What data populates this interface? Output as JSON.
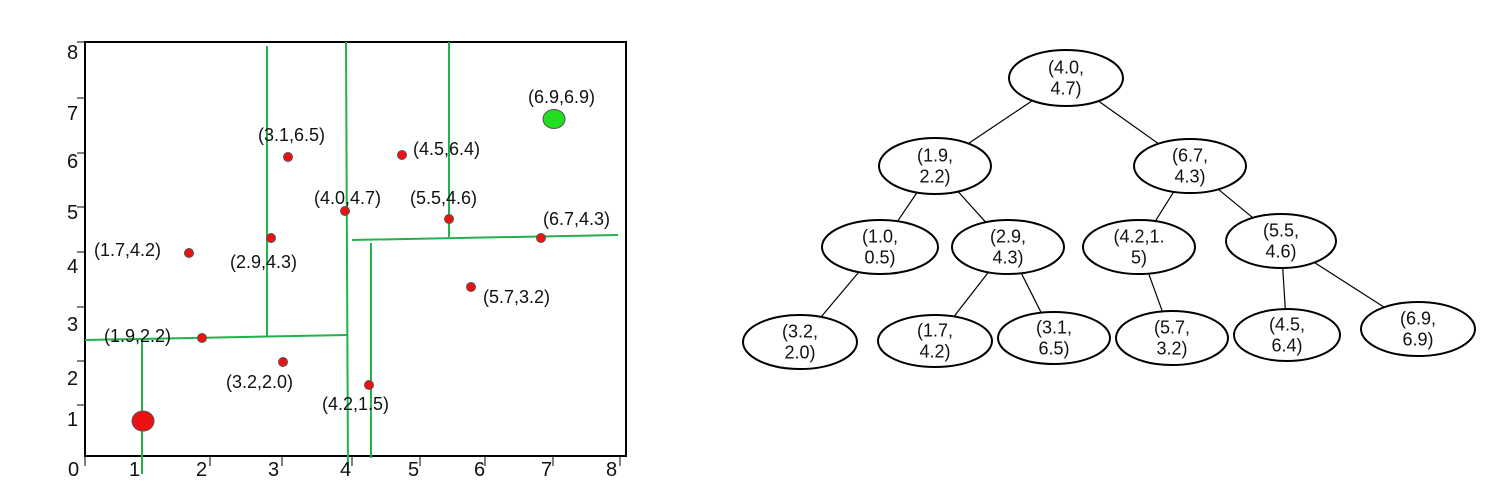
{
  "colors": {
    "split_line": "#22b14c",
    "point_fill": "#ee1111",
    "point_stroke": "#555555",
    "query_point": "#ee1111",
    "nearest_point": "#22dd22",
    "axis": "#000000",
    "node_stroke": "#000000"
  },
  "plot": {
    "x_ticks": [
      "0",
      "1",
      "2",
      "3",
      "4",
      "5",
      "6",
      "7",
      "8"
    ],
    "y_ticks": [
      "1",
      "2",
      "3",
      "4",
      "5",
      "6",
      "7",
      "8"
    ],
    "xlim": [
      0,
      8
    ],
    "ylim": [
      0,
      8
    ],
    "points": [
      {
        "x": 4.0,
        "y": 4.7,
        "label": "(4.0,4.7)"
      },
      {
        "x": 1.9,
        "y": 2.2,
        "label": "(1.9,2.2)"
      },
      {
        "x": 6.7,
        "y": 4.3,
        "label": "(6.7,4.3)"
      },
      {
        "x": 1.7,
        "y": 4.2,
        "label": "(1.7,4.2)"
      },
      {
        "x": 2.9,
        "y": 4.3,
        "label": "(2.9,4.3)"
      },
      {
        "x": 3.1,
        "y": 6.5,
        "label": "(3.1,6.5)"
      },
      {
        "x": 3.2,
        "y": 2.0,
        "label": "(3.2,2.0)"
      },
      {
        "x": 4.2,
        "y": 1.5,
        "label": "(4.2,1.5)"
      },
      {
        "x": 5.5,
        "y": 4.6,
        "label": "(5.5,4.6)"
      },
      {
        "x": 4.5,
        "y": 6.4,
        "label": "(4.5,6.4)"
      },
      {
        "x": 5.7,
        "y": 3.2,
        "label": "(5.7,3.2)"
      },
      {
        "x": 6.9,
        "y": 6.9,
        "label": "(6.9,6.9)"
      }
    ],
    "query_point": {
      "x": 1.0,
      "y": 0.8
    },
    "nearest_point": {
      "x": 6.9,
      "y": 6.9
    }
  },
  "tree": {
    "nodes": [
      {
        "id": "n1",
        "lines": [
          "(4.0,",
          "4.7)"
        ]
      },
      {
        "id": "n2",
        "lines": [
          "(1.9,",
          "2.2)"
        ]
      },
      {
        "id": "n3",
        "lines": [
          "(6.7,",
          "4.3)"
        ]
      },
      {
        "id": "n4",
        "lines": [
          "(1.0,",
          "0.5)"
        ]
      },
      {
        "id": "n5",
        "lines": [
          "(2.9,",
          "4.3)"
        ]
      },
      {
        "id": "n6",
        "lines": [
          "(4.2,1.",
          "5)"
        ]
      },
      {
        "id": "n7",
        "lines": [
          "(5.5,",
          "4.6)"
        ]
      },
      {
        "id": "n8",
        "lines": [
          "(3.2,",
          "2.0)"
        ]
      },
      {
        "id": "n9",
        "lines": [
          "(1.7,",
          "4.2)"
        ]
      },
      {
        "id": "n10",
        "lines": [
          "(3.1,",
          "6.5)"
        ]
      },
      {
        "id": "n11",
        "lines": [
          "(5.7,",
          "3.2)"
        ]
      },
      {
        "id": "n12",
        "lines": [
          "(4.5,",
          "6.4)"
        ]
      },
      {
        "id": "n13",
        "lines": [
          "(6.9,",
          "6.9)"
        ]
      }
    ],
    "edges": [
      [
        "n1",
        "n2"
      ],
      [
        "n1",
        "n3"
      ],
      [
        "n2",
        "n4"
      ],
      [
        "n2",
        "n5"
      ],
      [
        "n3",
        "n6"
      ],
      [
        "n3",
        "n7"
      ],
      [
        "n4",
        "n8"
      ],
      [
        "n5",
        "n9"
      ],
      [
        "n5",
        "n10"
      ],
      [
        "n6",
        "n11"
      ],
      [
        "n7",
        "n12"
      ],
      [
        "n7",
        "n13"
      ]
    ]
  }
}
